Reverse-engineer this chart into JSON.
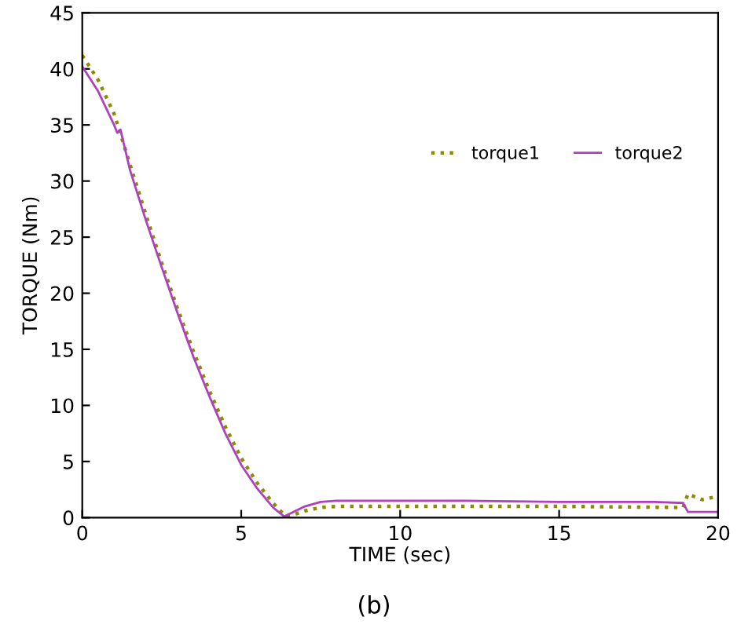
{
  "chart_data": {
    "type": "line",
    "xlabel": "TIME (sec)",
    "ylabel": "TORQUE (Nm)",
    "annotations": [
      "(b)"
    ],
    "xlim": [
      0,
      20
    ],
    "xticks": [
      0,
      5,
      10,
      15,
      20
    ],
    "ylim": [
      0,
      45
    ],
    "yticks": [
      0,
      5,
      10,
      15,
      20,
      25,
      30,
      35,
      40,
      45
    ],
    "grid": false,
    "legend": "right",
    "series": [
      {
        "name": "torque1",
        "color": "#8c8c00",
        "line_style": "dotted",
        "x": [
          0,
          0.5,
          1,
          1.5,
          2,
          2.5,
          3,
          3.5,
          4,
          4.5,
          5,
          5.5,
          6,
          6.4,
          6.6,
          7,
          7.5,
          8,
          10,
          15,
          18.9,
          19.05,
          19.5,
          20
        ],
        "values": [
          41.2,
          39,
          36,
          31.5,
          27,
          22.7,
          18.6,
          14.8,
          11.3,
          8.1,
          5.3,
          3.1,
          1.3,
          0.1,
          0.2,
          0.6,
          0.9,
          1.0,
          1.0,
          1.0,
          0.9,
          2.1,
          1.6,
          1.9
        ]
      },
      {
        "name": "torque2",
        "color": "#b040c0",
        "line_style": "solid",
        "x": [
          0,
          0.5,
          1,
          1.1,
          1.2,
          1.5,
          2,
          2.5,
          3,
          3.5,
          4,
          4.5,
          5,
          5.5,
          6,
          6.35,
          6.5,
          7,
          7.5,
          8,
          10,
          12,
          15,
          18,
          18.9,
          19.05,
          20
        ],
        "values": [
          40.2,
          38,
          35,
          34.3,
          34.6,
          31,
          26.5,
          22.3,
          18.2,
          14.3,
          10.8,
          7.5,
          4.7,
          2.6,
          0.9,
          0.1,
          0.3,
          1.0,
          1.4,
          1.5,
          1.5,
          1.5,
          1.4,
          1.4,
          1.3,
          0.5,
          0.5
        ]
      }
    ]
  }
}
